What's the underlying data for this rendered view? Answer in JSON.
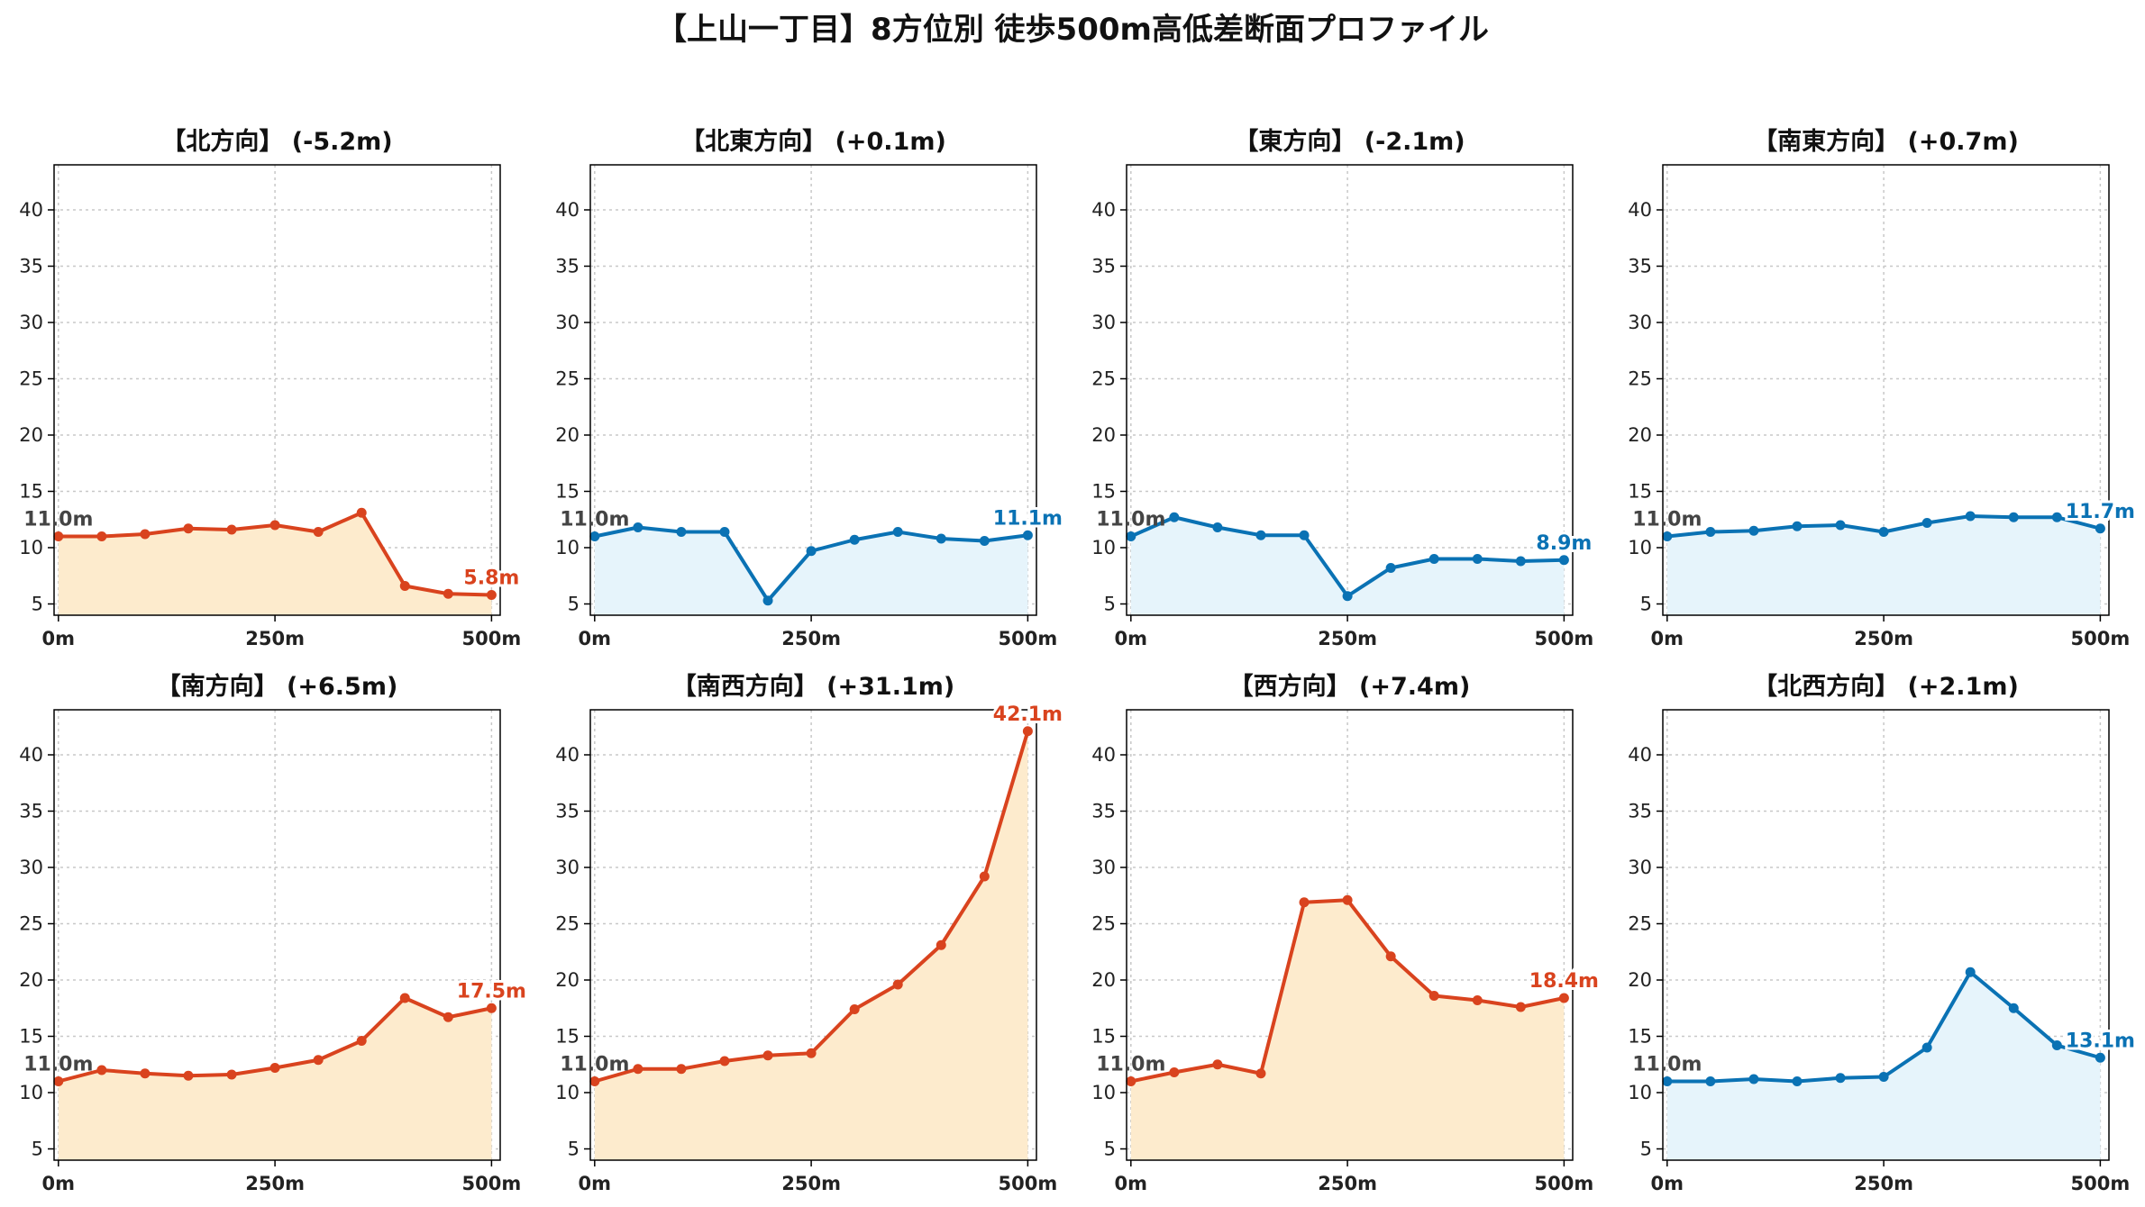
{
  "title": "【上山一丁目】8方位別 徒歩500m高低差断面プロファイル",
  "colors": {
    "down_line": "#0a72b4",
    "down_fill": "#e6f4fb",
    "up_line": "#d9431e",
    "up_fill": "#fdebcd"
  },
  "chart_data": [
    {
      "type": "area",
      "title": "【北方向】 (-5.2m)",
      "trend": "up",
      "x": [
        0,
        50,
        100,
        150,
        200,
        250,
        300,
        350,
        400,
        450,
        500
      ],
      "y": [
        11.0,
        11.0,
        11.2,
        11.7,
        11.6,
        12.0,
        11.4,
        13.1,
        6.6,
        5.9,
        5.8
      ],
      "xticks": [
        "0m",
        "250m",
        "500m"
      ],
      "yticks": [
        5,
        10,
        15,
        20,
        25,
        30,
        35,
        40
      ],
      "ylim": [
        4,
        44
      ],
      "xlim": [
        -5,
        510
      ],
      "start_label": "11.0m",
      "end_label": "5.8m",
      "grid": true
    },
    {
      "type": "area",
      "title": "【北東方向】 (+0.1m)",
      "trend": "down",
      "x": [
        0,
        50,
        100,
        150,
        200,
        250,
        300,
        350,
        400,
        450,
        500
      ],
      "y": [
        11.0,
        11.8,
        11.4,
        11.4,
        5.3,
        9.7,
        10.7,
        11.4,
        10.8,
        10.6,
        11.1
      ],
      "xticks": [
        "0m",
        "250m",
        "500m"
      ],
      "yticks": [
        5,
        10,
        15,
        20,
        25,
        30,
        35,
        40
      ],
      "ylim": [
        4,
        44
      ],
      "xlim": [
        -5,
        510
      ],
      "start_label": "11.0m",
      "end_label": "11.1m",
      "grid": true
    },
    {
      "type": "area",
      "title": "【東方向】 (-2.1m)",
      "trend": "down",
      "x": [
        0,
        50,
        100,
        150,
        200,
        250,
        300,
        350,
        400,
        450,
        500
      ],
      "y": [
        11.0,
        12.7,
        11.8,
        11.1,
        11.1,
        5.7,
        8.2,
        9.0,
        9.0,
        8.8,
        8.9
      ],
      "xticks": [
        "0m",
        "250m",
        "500m"
      ],
      "yticks": [
        5,
        10,
        15,
        20,
        25,
        30,
        35,
        40
      ],
      "ylim": [
        4,
        44
      ],
      "xlim": [
        -5,
        510
      ],
      "start_label": "11.0m",
      "end_label": "8.9m",
      "grid": true
    },
    {
      "type": "area",
      "title": "【南東方向】 (+0.7m)",
      "trend": "down",
      "x": [
        0,
        50,
        100,
        150,
        200,
        250,
        300,
        350,
        400,
        450,
        500
      ],
      "y": [
        11.0,
        11.4,
        11.5,
        11.9,
        12.0,
        11.4,
        12.2,
        12.8,
        12.7,
        12.7,
        11.7
      ],
      "xticks": [
        "0m",
        "250m",
        "500m"
      ],
      "yticks": [
        5,
        10,
        15,
        20,
        25,
        30,
        35,
        40
      ],
      "ylim": [
        4,
        44
      ],
      "xlim": [
        -5,
        510
      ],
      "start_label": "11.0m",
      "end_label": "11.7m",
      "grid": true
    },
    {
      "type": "area",
      "title": "【南方向】 (+6.5m)",
      "trend": "up",
      "x": [
        0,
        50,
        100,
        150,
        200,
        250,
        300,
        350,
        400,
        450,
        500
      ],
      "y": [
        11.0,
        12.0,
        11.7,
        11.5,
        11.6,
        12.2,
        12.9,
        14.6,
        18.4,
        16.7,
        17.5
      ],
      "xticks": [
        "0m",
        "250m",
        "500m"
      ],
      "yticks": [
        5,
        10,
        15,
        20,
        25,
        30,
        35,
        40
      ],
      "ylim": [
        4,
        44
      ],
      "xlim": [
        -5,
        510
      ],
      "start_label": "11.0m",
      "end_label": "17.5m",
      "grid": true
    },
    {
      "type": "area",
      "title": "【南西方向】 (+31.1m)",
      "trend": "up",
      "x": [
        0,
        50,
        100,
        150,
        200,
        250,
        300,
        350,
        400,
        450,
        500
      ],
      "y": [
        11.0,
        12.1,
        12.1,
        12.8,
        13.3,
        13.5,
        17.4,
        19.6,
        23.1,
        29.2,
        42.1
      ],
      "xticks": [
        "0m",
        "250m",
        "500m"
      ],
      "yticks": [
        5,
        10,
        15,
        20,
        25,
        30,
        35,
        40
      ],
      "ylim": [
        4,
        44
      ],
      "xlim": [
        -5,
        510
      ],
      "start_label": "11.0m",
      "end_label": "42.1m",
      "grid": true
    },
    {
      "type": "area",
      "title": "【西方向】 (+7.4m)",
      "trend": "up",
      "x": [
        0,
        50,
        100,
        150,
        200,
        250,
        300,
        350,
        400,
        450,
        500
      ],
      "y": [
        11.0,
        11.8,
        12.5,
        11.7,
        26.9,
        27.1,
        22.1,
        18.6,
        18.2,
        17.6,
        18.4
      ],
      "xticks": [
        "0m",
        "250m",
        "500m"
      ],
      "yticks": [
        5,
        10,
        15,
        20,
        25,
        30,
        35,
        40
      ],
      "ylim": [
        4,
        44
      ],
      "xlim": [
        -5,
        510
      ],
      "start_label": "11.0m",
      "end_label": "18.4m",
      "grid": true
    },
    {
      "type": "area",
      "title": "【北西方向】 (+2.1m)",
      "trend": "down",
      "x": [
        0,
        50,
        100,
        150,
        200,
        250,
        300,
        350,
        400,
        450,
        500
      ],
      "y": [
        11.0,
        11.0,
        11.2,
        11.0,
        11.3,
        11.4,
        14.0,
        20.7,
        17.5,
        14.2,
        13.1
      ],
      "xticks": [
        "0m",
        "250m",
        "500m"
      ],
      "yticks": [
        5,
        10,
        15,
        20,
        25,
        30,
        35,
        40
      ],
      "ylim": [
        4,
        44
      ],
      "xlim": [
        -5,
        510
      ],
      "start_label": "11.0m",
      "end_label": "13.1m",
      "grid": true
    }
  ]
}
